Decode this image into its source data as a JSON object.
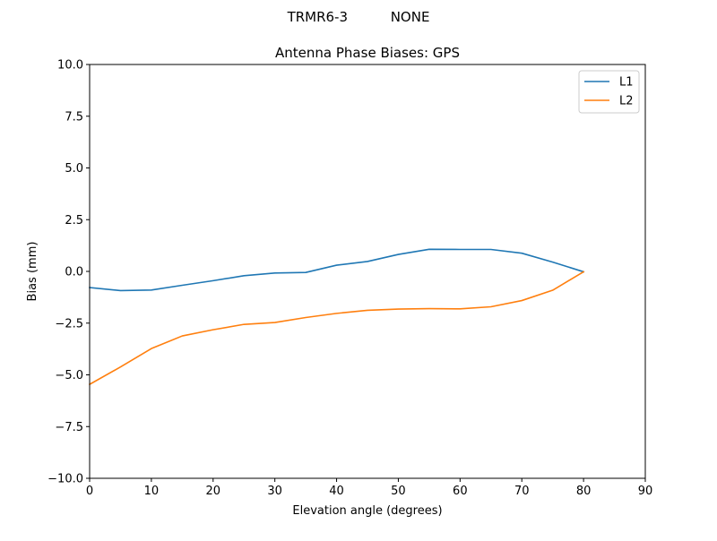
{
  "figure": {
    "suptitle": "TRMR6-3          NONE"
  },
  "chart_data": {
    "type": "line",
    "title": "Antenna Phase Biases: GPS",
    "xlabel": "Elevation angle (degrees)",
    "ylabel": "Bias (mm)",
    "xlim": [
      0,
      90
    ],
    "ylim": [
      -10,
      10
    ],
    "xticks": [
      0,
      10,
      20,
      30,
      40,
      50,
      60,
      70,
      80,
      90
    ],
    "xtick_labels": [
      "0",
      "10",
      "20",
      "30",
      "40",
      "50",
      "60",
      "70",
      "80",
      "90"
    ],
    "yticks": [
      -10,
      -7.5,
      -5,
      -2.5,
      0,
      2.5,
      5,
      7.5,
      10
    ],
    "ytick_labels": [
      "−10.0",
      "−7.5",
      "−5.0",
      "−2.5",
      "0.0",
      "2.5",
      "5.0",
      "7.5",
      "10.0"
    ],
    "grid": false,
    "legend_position": "top-right",
    "x": [
      0,
      5,
      10,
      15,
      20,
      25,
      30,
      35,
      40,
      45,
      50,
      55,
      60,
      65,
      70,
      75,
      80
    ],
    "series": [
      {
        "name": "L1",
        "color": "#1f77b4",
        "values": [
          -0.78,
          -0.93,
          -0.9,
          -0.67,
          -0.45,
          -0.21,
          -0.08,
          -0.05,
          0.3,
          0.48,
          0.82,
          1.07,
          1.06,
          1.06,
          0.88,
          0.45,
          -0.02
        ]
      },
      {
        "name": "L2",
        "color": "#ff7f0e",
        "values": [
          -5.46,
          -4.62,
          -3.73,
          -3.12,
          -2.82,
          -2.56,
          -2.47,
          -2.23,
          -2.03,
          -1.88,
          -1.82,
          -1.8,
          -1.81,
          -1.71,
          -1.41,
          -0.91,
          -0.02
        ]
      }
    ]
  }
}
